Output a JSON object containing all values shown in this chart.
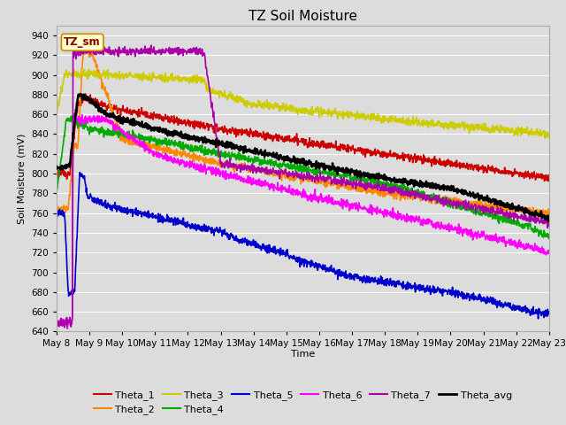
{
  "title": "TZ Soil Moisture",
  "xlabel": "Time",
  "ylabel": "Soil Moisture (mV)",
  "ylim": [
    640,
    950
  ],
  "yticks": [
    640,
    660,
    680,
    700,
    720,
    740,
    760,
    780,
    800,
    820,
    840,
    860,
    880,
    900,
    920,
    940
  ],
  "plot_bg": "#dcdcdc",
  "legend_label": "TZ_sm",
  "series": {
    "Theta_1": {
      "color": "#cc0000",
      "lw": 1.2
    },
    "Theta_2": {
      "color": "#ff8800",
      "lw": 1.2
    },
    "Theta_3": {
      "color": "#cccc00",
      "lw": 1.2
    },
    "Theta_4": {
      "color": "#00aa00",
      "lw": 1.2
    },
    "Theta_5": {
      "color": "#0000cc",
      "lw": 1.2
    },
    "Theta_6": {
      "color": "#ff00ff",
      "lw": 1.2
    },
    "Theta_7": {
      "color": "#aa00aa",
      "lw": 1.2
    },
    "Theta_avg": {
      "color": "#000000",
      "lw": 1.8
    }
  },
  "xtick_labels": [
    "May 8",
    "May 9",
    "May 10",
    "May 11",
    "May 12",
    "May 13",
    "May 14",
    "May 15",
    "May 16",
    "May 17",
    "May 18",
    "May 19",
    "May 20",
    "May 21",
    "May 22",
    "May 23"
  ],
  "grid_color": "#ffffff",
  "title_fontsize": 11,
  "axis_fontsize": 8,
  "tick_fontsize": 7.5
}
